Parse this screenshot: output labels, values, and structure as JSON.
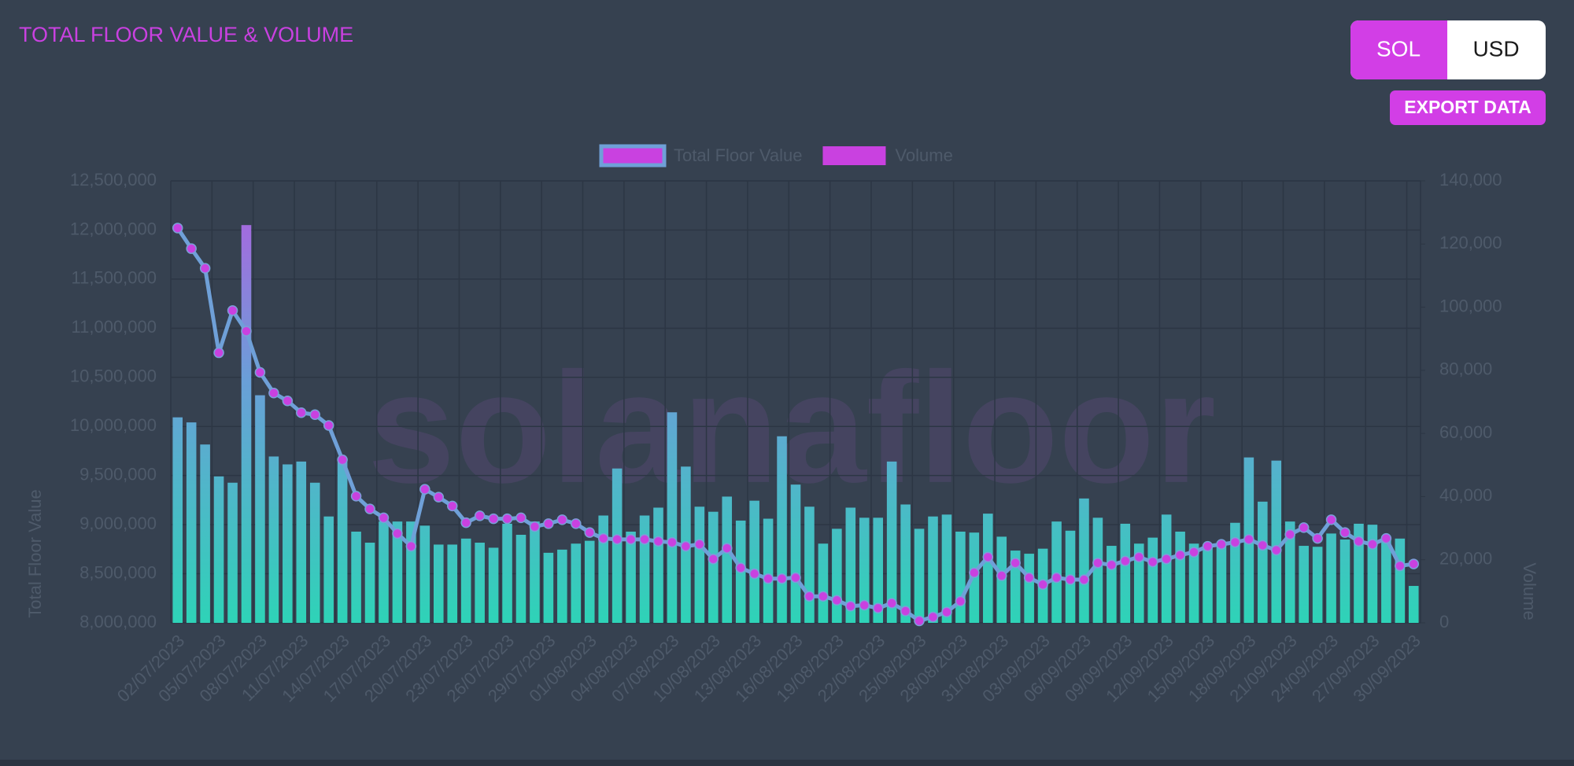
{
  "controls": {
    "currency": [
      "SOL",
      "USD"
    ],
    "export": "EXPORT DATA"
  },
  "watermark": "solanafloor",
  "chart_data": {
    "type": "combo",
    "title": "TOTAL FLOOR VALUE & VOLUME",
    "y_label": "Total Floor Value",
    "y2_label": "Volume",
    "categories": [
      "02/07/2023",
      null,
      null,
      "05/07/2023",
      null,
      null,
      "08/07/2023",
      null,
      null,
      "11/07/2023",
      null,
      null,
      "14/07/2023",
      null,
      null,
      "17/07/2023",
      null,
      null,
      "20/07/2023",
      null,
      null,
      "23/07/2023",
      null,
      null,
      "26/07/2023",
      null,
      null,
      "29/07/2023",
      null,
      null,
      "01/08/2023",
      null,
      null,
      "04/08/2023",
      null,
      null,
      "07/08/2023",
      null,
      null,
      "10/08/2023",
      null,
      null,
      "13/08/2023",
      null,
      null,
      "16/08/2023",
      null,
      null,
      "19/08/2023",
      null,
      null,
      "22/08/2023",
      null,
      null,
      "25/08/2023",
      null,
      null,
      "28/08/2023",
      null,
      null,
      "31/08/2023",
      null,
      null,
      "03/09/2023",
      null,
      null,
      "06/09/2023",
      null,
      null,
      "09/09/2023",
      null,
      null,
      "12/09/2023",
      null,
      null,
      "15/09/2023",
      null,
      null,
      "18/09/2023",
      null,
      null,
      "21/09/2023",
      null,
      null,
      "24/09/2023",
      null,
      null,
      "27/09/2023",
      null,
      null,
      "30/09/2023"
    ],
    "series": [
      {
        "name": "Total Floor Value",
        "type": "line",
        "color": "#6fa0d8",
        "point_color": "#c941e0",
        "values": [
          12020000,
          11810000,
          11610000,
          10750000,
          11180000,
          10970000,
          10550000,
          10340000,
          10260000,
          10140000,
          10120000,
          10010000,
          9660000,
          9290000,
          9160000,
          9070000,
          8910000,
          8780000,
          9360000,
          9280000,
          9190000,
          9020000,
          9090000,
          9060000,
          9060000,
          9070000,
          8980000,
          9010000,
          9050000,
          9010000,
          8920000,
          8860000,
          8850000,
          8850000,
          8850000,
          8830000,
          8820000,
          8780000,
          8800000,
          8650000,
          8760000,
          8560000,
          8500000,
          8450000,
          8450000,
          8460000,
          8270000,
          8270000,
          8230000,
          8170000,
          8180000,
          8150000,
          8200000,
          8120000,
          8020000,
          8060000,
          8110000,
          8220000,
          8510000,
          8670000,
          8480000,
          8610000,
          8460000,
          8390000,
          8460000,
          8440000,
          8440000,
          8610000,
          8590000,
          8630000,
          8670000,
          8620000,
          8650000,
          8690000,
          8720000,
          8780000,
          8800000,
          8820000,
          8850000,
          8790000,
          8740000,
          8900000,
          8970000,
          8860000,
          9050000,
          8920000,
          8830000,
          8800000,
          8860000,
          8580000,
          8600000
        ]
      },
      {
        "name": "Volume",
        "type": "bar",
        "axis": "y2",
        "color": "#c941e0",
        "gradient": [
          "#2ed3b7",
          "#b35de0"
        ],
        "values": [
          65100,
          63500,
          56500,
          46400,
          44400,
          126000,
          72100,
          52700,
          50200,
          51100,
          44400,
          33700,
          51000,
          28900,
          25400,
          32100,
          32100,
          32100,
          30800,
          24800,
          24800,
          26700,
          25400,
          23800,
          31400,
          27900,
          32100,
          22200,
          23200,
          25100,
          26000,
          34000,
          48900,
          28900,
          34000,
          36500,
          66700,
          49500,
          36800,
          35200,
          40000,
          32400,
          38700,
          33000,
          59100,
          43800,
          36800,
          25100,
          29800,
          36500,
          33300,
          33300,
          51100,
          37500,
          29800,
          33700,
          34300,
          28900,
          28600,
          34600,
          27300,
          22900,
          21900,
          23500,
          32100,
          29200,
          39400,
          33300,
          24400,
          31400,
          25100,
          27000,
          34300,
          28900,
          25100,
          24400,
          25100,
          31700,
          52400,
          38400,
          51400,
          32100,
          24400,
          24100,
          28300,
          26400,
          31400,
          31100,
          26700,
          26700,
          11700
        ]
      }
    ],
    "ylim": [
      8000000,
      12500000
    ],
    "yticks": [
      {
        "value": 8000000,
        "label": "8,000,000"
      },
      {
        "value": 8500000,
        "label": "8,500,000"
      },
      {
        "value": 9000000,
        "label": "9,000,000"
      },
      {
        "value": 9500000,
        "label": "9,500,000"
      },
      {
        "value": 10000000,
        "label": "10,000,000"
      },
      {
        "value": 10500000,
        "label": "10,500,000"
      },
      {
        "value": 11000000,
        "label": "11,000,000"
      },
      {
        "value": 11500000,
        "label": "11,500,000"
      },
      {
        "value": 12000000,
        "label": "12,000,000"
      },
      {
        "value": 12500000,
        "label": "12,500,000"
      }
    ],
    "y2lim": [
      0,
      140000
    ],
    "y2ticks": [
      0,
      {
        "value": 20000,
        "label": "20,000"
      },
      {
        "value": 40000,
        "label": "40,000"
      },
      {
        "value": 60000,
        "label": "60,000"
      },
      {
        "value": 80000,
        "label": "80,000"
      },
      {
        "value": 100000,
        "label": "100,000"
      },
      {
        "value": 120000,
        "label": "120,000"
      },
      {
        "value": 140000,
        "label": "140,000"
      }
    ],
    "grid": true
  }
}
